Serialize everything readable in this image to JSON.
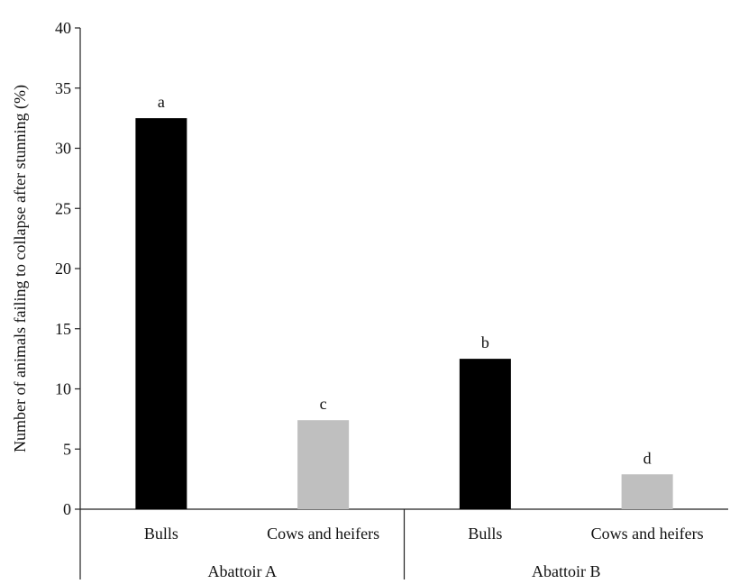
{
  "chart_data": {
    "type": "bar",
    "ylabel": "Number of animals failing to collapse after stunning (%)",
    "xlabel": "",
    "ylim": [
      0,
      40
    ],
    "yticks": [
      "0",
      "5",
      "10",
      "15",
      "20",
      "25",
      "30",
      "35",
      "40"
    ],
    "grid": false,
    "groups": [
      {
        "label": "Abattoir A",
        "bars": [
          {
            "category": "Bulls",
            "value": 32.5,
            "annotation": "a",
            "color": "#000000"
          },
          {
            "category": "Cows and heifers",
            "value": 7.4,
            "annotation": "c",
            "color": "#bfbfbf"
          }
        ]
      },
      {
        "label": "Abattoir B",
        "bars": [
          {
            "category": "Bulls",
            "value": 12.5,
            "annotation": "b",
            "color": "#000000"
          },
          {
            "category": "Cows and heifers",
            "value": 2.9,
            "annotation": "d",
            "color": "#bfbfbf"
          }
        ]
      }
    ]
  }
}
